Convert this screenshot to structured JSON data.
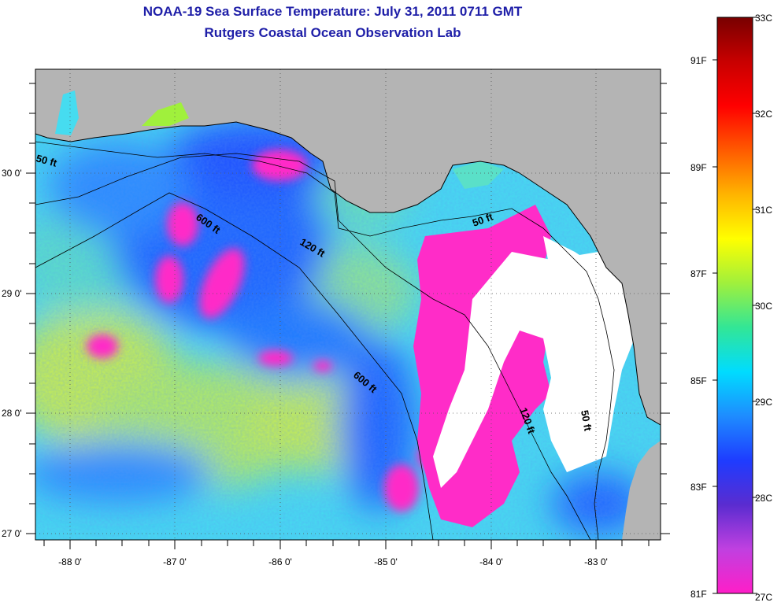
{
  "title": {
    "line1": "NOAA-19 Sea Surface Temperature:  July 31, 2011 0711 GMT",
    "line2": "Rutgers Coastal Ocean Observation Lab"
  },
  "map": {
    "lon_range": [
      -88.33,
      -82.42
    ],
    "lat_range": [
      26.95,
      30.85
    ],
    "lon_ticks": [
      {
        "value": -88,
        "label": "-88 0'"
      },
      {
        "value": -87,
        "label": "-87 0'"
      },
      {
        "value": -86,
        "label": "-86 0'"
      },
      {
        "value": -85,
        "label": "-85 0'"
      },
      {
        "value": -84,
        "label": "-84 0'"
      },
      {
        "value": -83,
        "label": "-83 0'"
      }
    ],
    "lat_ticks": [
      {
        "value": 30,
        "label": "30 0'"
      },
      {
        "value": 29,
        "label": "29 0'"
      },
      {
        "value": 28,
        "label": "28 0'"
      },
      {
        "value": 27,
        "label": "27 0'"
      }
    ],
    "grid": "dotted",
    "land_color": "#b4b4b4",
    "cloud_color": "#ffffff",
    "contour_labels": [
      {
        "text": "50 ft"
      },
      {
        "text": "600 ft"
      },
      {
        "text": "120 ft"
      },
      {
        "text": "50 ft"
      },
      {
        "text": "600 ft"
      },
      {
        "text": "120 ft"
      },
      {
        "text": "50 ft"
      }
    ]
  },
  "colorbar": {
    "range_c": [
      27,
      33
    ],
    "celsius_labels": [
      "33C",
      "32C",
      "31C",
      "30C",
      "29C",
      "28C",
      "27C"
    ],
    "fahrenheit_labels": [
      "91F",
      "89F",
      "87F",
      "85F",
      "83F",
      "81F"
    ],
    "stops": [
      "#ff1ec8",
      "#c040e0",
      "#5a2cd0",
      "#1e3cff",
      "#1e8cff",
      "#00dcff",
      "#32e696",
      "#a0f03c",
      "#ffff00",
      "#ffb400",
      "#ff5a00",
      "#ff0000",
      "#c80000",
      "#780000"
    ]
  }
}
